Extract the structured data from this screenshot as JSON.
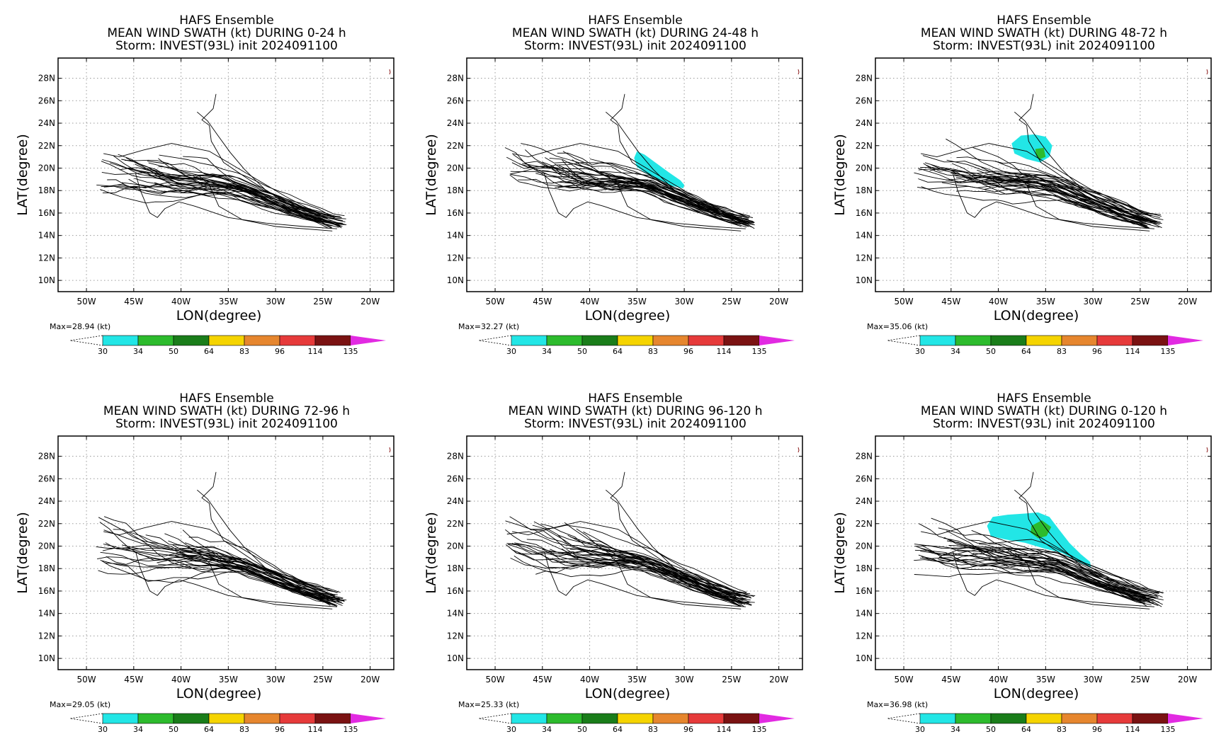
{
  "chart_data": [
    {
      "type": "map",
      "title": [
        "HAFS Ensemble",
        "MEAN WIND SWATH (kt) DURING  0-24 h",
        "Storm: INVEST(93L) init 2024091100"
      ],
      "xlabel": "LON(degree)",
      "ylabel": "LAT(degree)",
      "xticks": [
        "50W",
        "45W",
        "40W",
        "35W",
        "30W",
        "25W",
        "20W"
      ],
      "yticks": [
        "28N",
        "26N",
        "24N",
        "22N",
        "20N",
        "18N",
        "16N",
        "14N",
        "12N",
        "10N"
      ],
      "xlim": [
        -53,
        -17.5
      ],
      "ylim": [
        9,
        29.8
      ],
      "grid": true,
      "max_label": "Max=28.94 (kt)",
      "swath": []
    },
    {
      "type": "map",
      "title": [
        "HAFS Ensemble",
        "MEAN WIND SWATH (kt) DURING 24-48 h",
        "Storm: INVEST(93L) init 2024091100"
      ],
      "xlabel": "LON(degree)",
      "ylabel": "LAT(degree)",
      "xticks": [
        "50W",
        "45W",
        "40W",
        "35W",
        "30W",
        "25W",
        "20W"
      ],
      "yticks": [
        "28N",
        "26N",
        "24N",
        "22N",
        "20N",
        "18N",
        "16N",
        "14N",
        "12N",
        "10N"
      ],
      "xlim": [
        -53,
        -17.5
      ],
      "ylim": [
        9,
        29.8
      ],
      "grid": true,
      "max_label": "Max=32.27 (kt)",
      "swath": [
        {
          "category": "30-34",
          "polygon": [
            [
              -35.0,
              21.5
            ],
            [
              -34.2,
              21.2
            ],
            [
              -32.9,
              20.4
            ],
            [
              -31.6,
              19.6
            ],
            [
              -30.4,
              18.9
            ],
            [
              -30.0,
              18.5
            ],
            [
              -30.1,
              18.2
            ],
            [
              -31.2,
              18.4
            ],
            [
              -32.6,
              18.9
            ],
            [
              -33.8,
              19.4
            ],
            [
              -35.0,
              20.1
            ],
            [
              -35.3,
              20.9
            ]
          ]
        }
      ]
    },
    {
      "type": "map",
      "title": [
        "HAFS Ensemble",
        "MEAN WIND SWATH (kt) DURING 48-72 h",
        "Storm: INVEST(93L) init 2024091100"
      ],
      "xlabel": "LON(degree)",
      "ylabel": "LAT(degree)",
      "xticks": [
        "50W",
        "45W",
        "40W",
        "35W",
        "30W",
        "25W",
        "20W"
      ],
      "yticks": [
        "28N",
        "26N",
        "24N",
        "22N",
        "20N",
        "18N",
        "16N",
        "14N",
        "12N",
        "10N"
      ],
      "xlim": [
        -53,
        -17.5
      ],
      "ylim": [
        9,
        29.8
      ],
      "grid": true,
      "max_label": "Max=35.06 (kt)",
      "swath": [
        {
          "category": "30-34",
          "polygon": [
            [
              -38.6,
              22.2
            ],
            [
              -37.6,
              22.9
            ],
            [
              -36.2,
              23.0
            ],
            [
              -35.0,
              22.8
            ],
            [
              -34.3,
              22.0
            ],
            [
              -34.6,
              21.0
            ],
            [
              -35.6,
              20.5
            ],
            [
              -37.0,
              20.8
            ],
            [
              -38.3,
              21.3
            ]
          ]
        },
        {
          "category": "34-50",
          "polygon": [
            [
              -36.1,
              21.7
            ],
            [
              -35.2,
              21.8
            ],
            [
              -35.0,
              21.0
            ],
            [
              -35.6,
              20.8
            ],
            [
              -36.0,
              21.1
            ]
          ]
        }
      ]
    },
    {
      "type": "map",
      "title": [
        "HAFS Ensemble",
        "MEAN WIND SWATH (kt) DURING 72-96 h",
        "Storm: INVEST(93L) init 2024091100"
      ],
      "xlabel": "LON(degree)",
      "ylabel": "LAT(degree)",
      "xticks": [
        "50W",
        "45W",
        "40W",
        "35W",
        "30W",
        "25W",
        "20W"
      ],
      "yticks": [
        "28N",
        "26N",
        "24N",
        "22N",
        "20N",
        "18N",
        "16N",
        "14N",
        "12N",
        "10N"
      ],
      "xlim": [
        -53,
        -17.5
      ],
      "ylim": [
        9,
        29.8
      ],
      "grid": true,
      "max_label": "Max=29.05 (kt)",
      "swath": []
    },
    {
      "type": "map",
      "title": [
        "HAFS Ensemble",
        "MEAN WIND SWATH (kt) DURING 96-120 h",
        "Storm: INVEST(93L) init 2024091100"
      ],
      "xlabel": "LON(degree)",
      "ylabel": "LAT(degree)",
      "xticks": [
        "50W",
        "45W",
        "40W",
        "35W",
        "30W",
        "25W",
        "20W"
      ],
      "yticks": [
        "28N",
        "26N",
        "24N",
        "22N",
        "20N",
        "18N",
        "16N",
        "14N",
        "12N",
        "10N"
      ],
      "xlim": [
        -53,
        -17.5
      ],
      "ylim": [
        9,
        29.8
      ],
      "grid": true,
      "max_label": "Max=25.33 (kt)",
      "swath": []
    },
    {
      "type": "map",
      "title": [
        "HAFS Ensemble",
        "MEAN WIND SWATH (kt) DURING 0-120 h",
        "Storm: INVEST(93L) init 2024091100"
      ],
      "xlabel": "LON(degree)",
      "ylabel": "LAT(degree)",
      "xticks": [
        "50W",
        "45W",
        "40W",
        "35W",
        "30W",
        "25W",
        "20W"
      ],
      "yticks": [
        "28N",
        "26N",
        "24N",
        "22N",
        "20N",
        "18N",
        "16N",
        "14N",
        "12N",
        "10N"
      ],
      "xlim": [
        -53,
        -17.5
      ],
      "ylim": [
        9,
        29.8
      ],
      "grid": true,
      "max_label": "Max=36.98 (kt)",
      "swath": [
        {
          "category": "30-34",
          "polygon": [
            [
              -41.2,
              21.8
            ],
            [
              -40.6,
              22.6
            ],
            [
              -39.0,
              22.8
            ],
            [
              -37.2,
              22.9
            ],
            [
              -35.8,
              23.0
            ],
            [
              -34.6,
              22.6
            ],
            [
              -33.6,
              21.5
            ],
            [
              -32.5,
              20.3
            ],
            [
              -31.3,
              19.3
            ],
            [
              -30.3,
              18.6
            ],
            [
              -30.2,
              18.1
            ],
            [
              -31.3,
              18.5
            ],
            [
              -33.3,
              19.4
            ],
            [
              -35.2,
              19.8
            ],
            [
              -37.2,
              20.3
            ],
            [
              -39.3,
              20.6
            ],
            [
              -40.8,
              20.9
            ]
          ]
        },
        {
          "category": "34-50",
          "polygon": [
            [
              -36.5,
              21.8
            ],
            [
              -35.4,
              22.3
            ],
            [
              -34.4,
              21.7
            ],
            [
              -34.9,
              20.9
            ],
            [
              -35.8,
              20.7
            ],
            [
              -36.6,
              21.2
            ]
          ]
        }
      ]
    }
  ],
  "colorbar": {
    "labels": [
      "30",
      "34",
      "50",
      "64",
      "83",
      "96",
      "114",
      "135"
    ],
    "colors": [
      "#22e6e6",
      "#2dbb2d",
      "#1a7d1a",
      "#f5d400",
      "#e6862e",
      "#e63a3a",
      "#7a1212",
      "#e22ae2"
    ]
  }
}
